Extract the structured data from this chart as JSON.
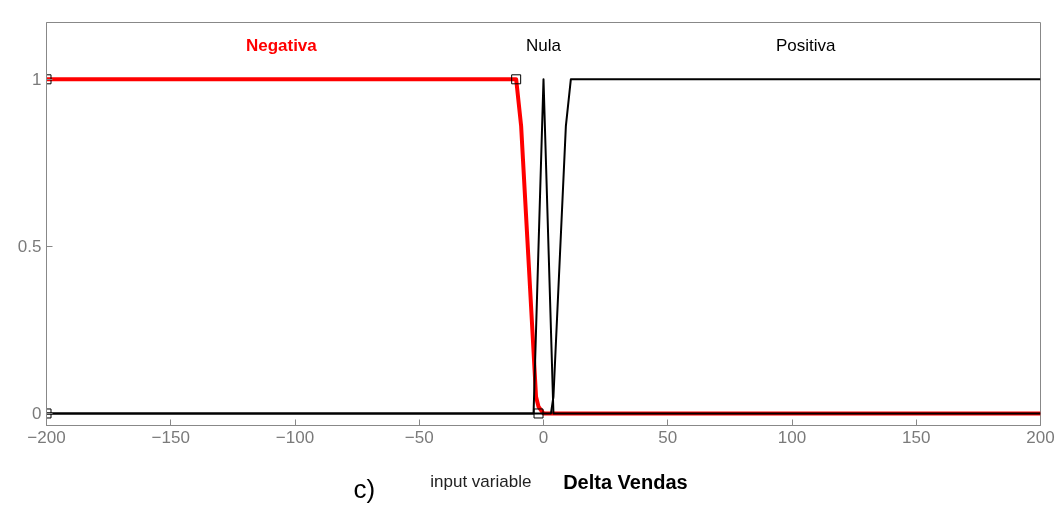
{
  "chart_data": {
    "type": "line",
    "xlabel": "input variable",
    "annotations": [
      "Delta Vendas",
      "c)"
    ],
    "xlim": [
      -200,
      200
    ],
    "ylim": [
      -0.036,
      1.17
    ],
    "xticks": [
      -200,
      -150,
      -100,
      -50,
      0,
      50,
      100,
      150,
      200
    ],
    "yticks": [
      0,
      0.5,
      1
    ],
    "grid": false,
    "marker": "none",
    "line_style": "solid",
    "series": [
      {
        "name": "Negativa",
        "color": "#ff0000",
        "x": [
          -200,
          -11,
          -9,
          -3,
          -2,
          0,
          200
        ],
        "values": [
          1,
          1,
          0.86,
          0.05,
          0.02,
          0,
          0
        ]
      },
      {
        "name": "Nula",
        "color": "#000000",
        "x": [
          -200,
          -4,
          0,
          4,
          200
        ],
        "values": [
          0,
          0,
          1,
          0,
          0
        ]
      },
      {
        "name": "Positiva",
        "color": "#000000",
        "x": [
          -200,
          3,
          4,
          9,
          11,
          200
        ],
        "values": [
          0,
          0,
          0.05,
          0.86,
          1,
          1
        ]
      },
      {
        "type": "scatter",
        "marker": "square",
        "color": "#000000",
        "x": [
          -200,
          -200,
          -11,
          -2
        ],
        "values": [
          0,
          1,
          1,
          0
        ]
      }
    ]
  }
}
